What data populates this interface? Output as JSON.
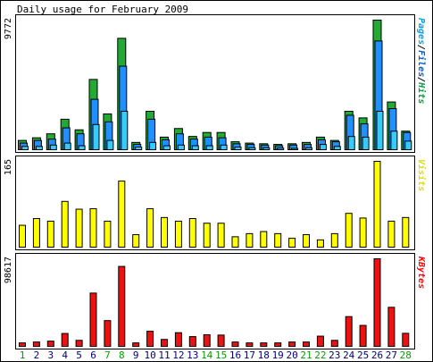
{
  "chart_data": [
    {
      "type": "bar",
      "title": "Daily usage for February 2009",
      "panel": "top",
      "ymax_label": "9772",
      "ymax": 9772,
      "side_label": {
        "parts": [
          {
            "text": "Pages",
            "color": "#00a0e0"
          },
          {
            "text": "/",
            "color": "#000000"
          },
          {
            "text": "Files",
            "color": "#0060c0"
          },
          {
            "text": "/",
            "color": "#000000"
          },
          {
            "text": "Hits",
            "color": "#00a040"
          }
        ]
      },
      "categories": [
        "1",
        "2",
        "3",
        "4",
        "5",
        "6",
        "7",
        "8",
        "9",
        "10",
        "11",
        "12",
        "13",
        "14",
        "15",
        "16",
        "17",
        "18",
        "19",
        "20",
        "21",
        "22",
        "23",
        "24",
        "25",
        "26",
        "27",
        "28"
      ],
      "series": [
        {
          "name": "Hits",
          "color": "#22aa33",
          "values": [
            700,
            900,
            1200,
            2300,
            1500,
            5300,
            2700,
            8400,
            550,
            2900,
            950,
            1600,
            1000,
            1300,
            1300,
            600,
            500,
            450,
            400,
            450,
            550,
            950,
            700,
            2900,
            2400,
            9772,
            3600,
            1400
          ]
        },
        {
          "name": "Files",
          "color": "#1e90ff",
          "values": [
            500,
            700,
            800,
            1650,
            1200,
            3800,
            2100,
            6300,
            400,
            2300,
            750,
            1200,
            800,
            950,
            900,
            450,
            400,
            350,
            300,
            350,
            400,
            750,
            600,
            2600,
            1950,
            8200,
            3100,
            1300
          ]
        },
        {
          "name": "Pages",
          "color": "#33ccff",
          "values": [
            250,
            250,
            350,
            500,
            300,
            1900,
            700,
            2900,
            200,
            550,
            300,
            350,
            300,
            300,
            350,
            200,
            150,
            150,
            120,
            100,
            150,
            400,
            250,
            1000,
            950,
            2900,
            1400,
            650
          ]
        }
      ]
    },
    {
      "type": "bar",
      "panel": "middle",
      "ymax_label": "165",
      "ymax": 165,
      "side_label": {
        "parts": [
          {
            "text": "Visits",
            "color": "#dddd00"
          }
        ]
      },
      "categories": [
        "1",
        "2",
        "3",
        "4",
        "5",
        "6",
        "7",
        "8",
        "9",
        "10",
        "11",
        "12",
        "13",
        "14",
        "15",
        "16",
        "17",
        "18",
        "19",
        "20",
        "21",
        "22",
        "23",
        "24",
        "25",
        "26",
        "27",
        "28"
      ],
      "series": [
        {
          "name": "Visits",
          "color": "#ffff00",
          "values": [
            42,
            55,
            50,
            88,
            73,
            74,
            50,
            127,
            24,
            74,
            57,
            50,
            55,
            46,
            46,
            20,
            26,
            30,
            26,
            17,
            24,
            14,
            26,
            65,
            56,
            165,
            50,
            57
          ]
        }
      ]
    },
    {
      "type": "bar",
      "panel": "bottom",
      "ymax_label": "98617",
      "ymax": 98617,
      "side_label": {
        "parts": [
          {
            "text": "KBytes",
            "color": "#ff0000"
          }
        ]
      },
      "categories": [
        "1",
        "2",
        "3",
        "4",
        "5",
        "6",
        "7",
        "8",
        "9",
        "10",
        "11",
        "12",
        "13",
        "14",
        "15",
        "16",
        "17",
        "18",
        "19",
        "20",
        "21",
        "22",
        "23",
        "24",
        "25",
        "26",
        "27",
        "28"
      ],
      "series": [
        {
          "name": "KBytes",
          "color": "#ee1111",
          "values": [
            3900,
            4900,
            5900,
            14500,
            6800,
            60000,
            29000,
            90000,
            3900,
            17000,
            7800,
            15400,
            11000,
            13100,
            12700,
            4900,
            3900,
            3900,
            3900,
            4900,
            4900,
            11500,
            6800,
            33500,
            23600,
            98617,
            44000,
            14700
          ]
        }
      ]
    }
  ],
  "xaxis": {
    "labels": [
      "1",
      "2",
      "3",
      "4",
      "5",
      "6",
      "7",
      "8",
      "9",
      "10",
      "11",
      "12",
      "13",
      "14",
      "15",
      "16",
      "17",
      "18",
      "19",
      "20",
      "21",
      "22",
      "23",
      "24",
      "25",
      "26",
      "27",
      "28"
    ],
    "weekend_days": [
      "1",
      "7",
      "8",
      "14",
      "15",
      "21",
      "22",
      "28"
    ],
    "weekday_color": "#000080",
    "weekend_color": "#00a000"
  },
  "colors": {
    "background": "#ffffff",
    "frame": "#000000",
    "bar_outline": "#000000"
  }
}
